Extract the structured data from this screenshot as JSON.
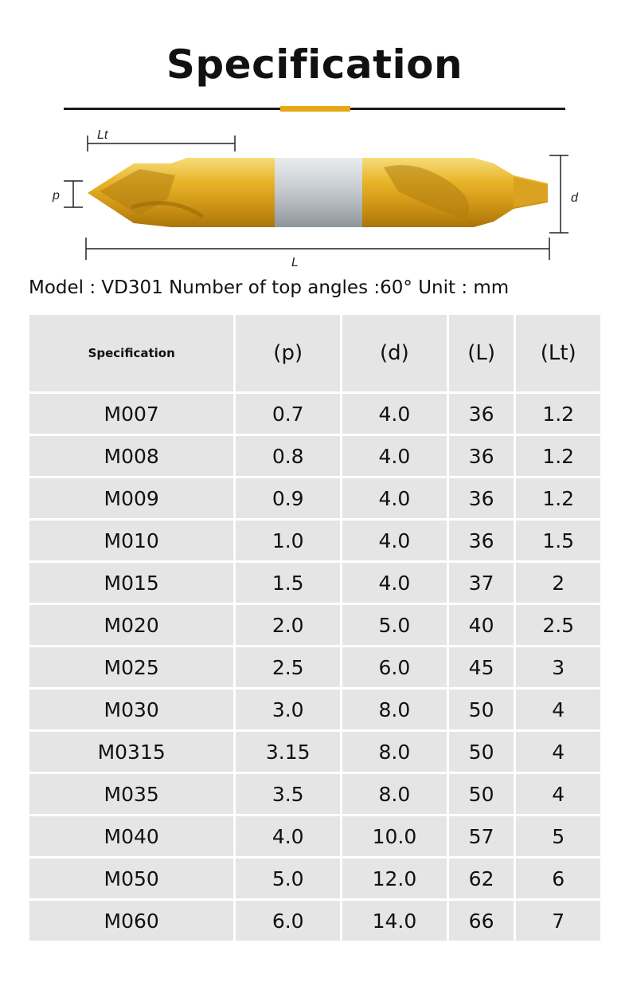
{
  "title": "Specification",
  "model_line": "Model : VD301 Number of top angles :60° Unit : mm",
  "drawing_labels": {
    "lt": "Lt",
    "p": "p",
    "d": "d",
    "l": "L"
  },
  "colors": {
    "accent": "#e6a817",
    "cell_bg": "#e5e5e5",
    "gold": "#e8b428",
    "silver": "#c7ccd0"
  },
  "table": {
    "headers": [
      "Specification",
      "(p)",
      "(d)",
      "(L)",
      "(Lt)"
    ],
    "rows": [
      [
        "M007",
        "0.7",
        "4.0",
        "36",
        "1.2"
      ],
      [
        "M008",
        "0.8",
        "4.0",
        "36",
        "1.2"
      ],
      [
        "M009",
        "0.9",
        "4.0",
        "36",
        "1.2"
      ],
      [
        "M010",
        "1.0",
        "4.0",
        "36",
        "1.5"
      ],
      [
        "M015",
        "1.5",
        "4.0",
        "37",
        "2"
      ],
      [
        "M020",
        "2.0",
        "5.0",
        "40",
        "2.5"
      ],
      [
        "M025",
        "2.5",
        "6.0",
        "45",
        "3"
      ],
      [
        "M030",
        "3.0",
        "8.0",
        "50",
        "4"
      ],
      [
        "M0315",
        "3.15",
        "8.0",
        "50",
        "4"
      ],
      [
        "M035",
        "3.5",
        "8.0",
        "50",
        "4"
      ],
      [
        "M040",
        "4.0",
        "10.0",
        "57",
        "5"
      ],
      [
        "M050",
        "5.0",
        "12.0",
        "62",
        "6"
      ],
      [
        "M060",
        "6.0",
        "14.0",
        "66",
        "7"
      ]
    ]
  }
}
